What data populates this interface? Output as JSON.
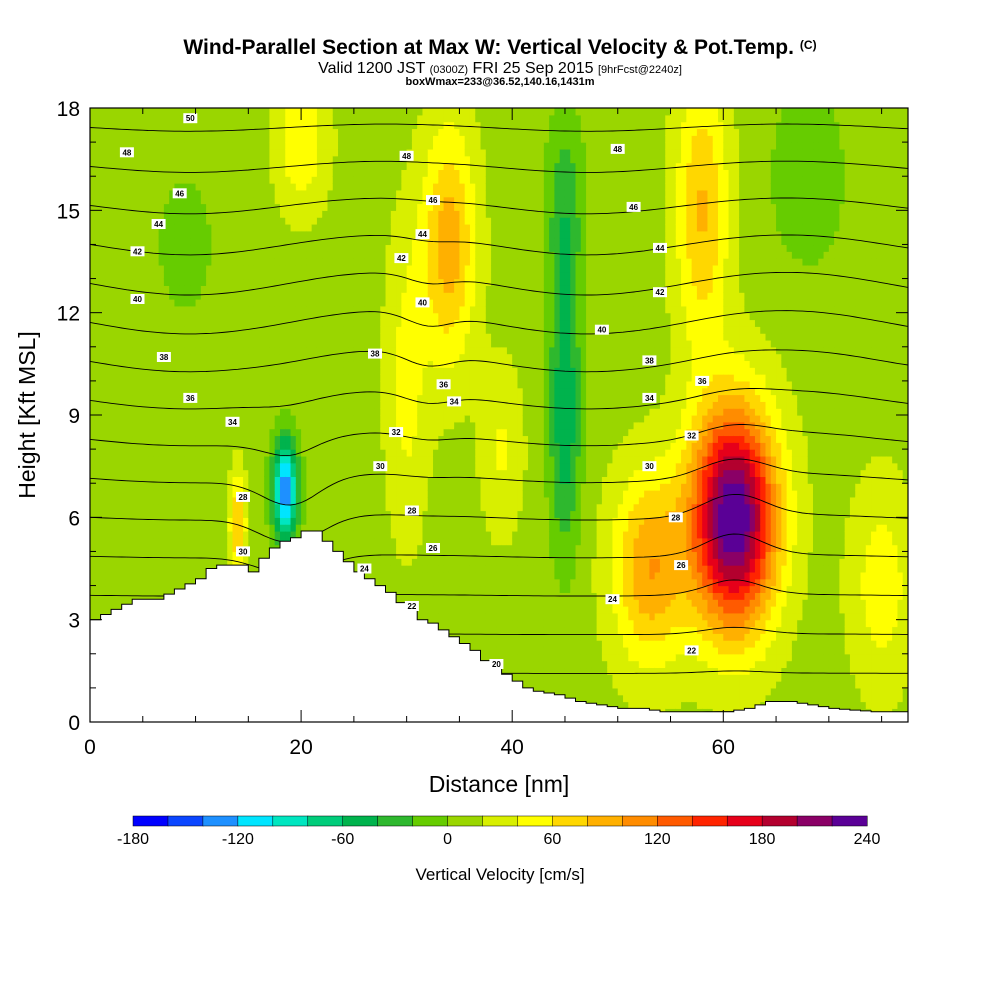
{
  "header": {
    "title": "Wind-Parallel Section at Max W: Vertical Velocity & Pot.Temp.",
    "title_mark": "(C)",
    "subtitle_a": "Valid 1200 JST",
    "subtitle_b": "(0300Z)",
    "subtitle_c": "FRI 25 Sep 2015",
    "subtitle_d": "[9hrFcst@2240z]",
    "subtitle2": "boxWmax=233@36.52,140.16,1431m"
  },
  "chart_data": {
    "type": "heatmap",
    "xlabel": "Distance [nm]",
    "ylabel": "Height [Kft MSL]",
    "xlim": [
      0,
      77.5
    ],
    "ylim": [
      0,
      18
    ],
    "x_ticks": [
      0,
      20,
      40,
      60
    ],
    "y_ticks": [
      0,
      3,
      6,
      9,
      12,
      15,
      18
    ],
    "colorbar": {
      "title": "Vertical Velocity [cm/s]",
      "min": -180,
      "max": 240,
      "step": 20,
      "tick_values": [
        -180,
        -120,
        -60,
        0,
        60,
        120,
        180,
        240
      ],
      "tick_labels": [
        "-180",
        "-120",
        "-60",
        "0",
        "60",
        "120",
        "180",
        "240"
      ],
      "colors": [
        "#0000ff",
        "#0a46ff",
        "#1e90ff",
        "#00e5ff",
        "#00e6c0",
        "#00cc7a",
        "#00b34d",
        "#2eb82e",
        "#66cc00",
        "#9ad600",
        "#d8ef00",
        "#ffff00",
        "#ffd700",
        "#ffb000",
        "#ff8c00",
        "#ff5a00",
        "#ff2400",
        "#e6001a",
        "#b3002e",
        "#8a0066",
        "#5a0096"
      ]
    },
    "terrain_profile": {
      "x": [
        0,
        2,
        4,
        6,
        8,
        10,
        11,
        12,
        13,
        14,
        15,
        15.5,
        16,
        17,
        18,
        19,
        20,
        21,
        22,
        23,
        24,
        25,
        26,
        27,
        28,
        29,
        30,
        31,
        32,
        33,
        34,
        35,
        36,
        37,
        38,
        39,
        40,
        41,
        42,
        44,
        46,
        48,
        50,
        52,
        54,
        56,
        58,
        60,
        62,
        64,
        66,
        68,
        70,
        72,
        74,
        76,
        77.5
      ],
      "height": [
        3.0,
        3.3,
        3.6,
        3.6,
        3.9,
        4.2,
        4.5,
        4.6,
        4.6,
        4.6,
        4.4,
        4.3,
        4.8,
        5.1,
        5.3,
        5.4,
        5.6,
        5.6,
        5.3,
        5.0,
        4.7,
        4.4,
        4.2,
        4.0,
        3.8,
        3.5,
        3.3,
        3.0,
        2.9,
        2.7,
        2.5,
        2.3,
        2.1,
        1.8,
        1.6,
        1.4,
        1.2,
        1.0,
        0.9,
        0.8,
        0.6,
        0.5,
        0.4,
        0.4,
        0.3,
        0.3,
        0.3,
        0.3,
        0.4,
        0.6,
        0.6,
        0.5,
        0.4,
        0.35,
        0.3,
        0.3,
        0.3
      ]
    },
    "vertical_velocity_features": [
      {
        "x": 61,
        "y": 6.0,
        "peak": 233,
        "sx": 4.0,
        "sy": 3.2
      },
      {
        "x": 53,
        "y": 4.5,
        "peak": 85,
        "sx": 3.5,
        "sy": 2.8
      },
      {
        "x": 58,
        "y": 15.0,
        "peak": 70,
        "sx": 2.5,
        "sy": 4.0
      },
      {
        "x": 34,
        "y": 14.0,
        "peak": 80,
        "sx": 2.5,
        "sy": 3.5
      },
      {
        "x": 30,
        "y": 10.0,
        "peak": 35,
        "sx": 2.0,
        "sy": 4.5
      },
      {
        "x": 14,
        "y": 5.8,
        "peak": 70,
        "sx": 0.8,
        "sy": 1.5
      },
      {
        "x": 18.5,
        "y": 6.8,
        "peak": -150,
        "sx": 1.2,
        "sy": 1.5
      },
      {
        "x": 45,
        "y": 9.0,
        "peak": -70,
        "sx": 1.5,
        "sy": 4.0
      },
      {
        "x": 45,
        "y": 15.0,
        "peak": -45,
        "sx": 1.8,
        "sy": 3.0
      },
      {
        "x": 20,
        "y": 17.0,
        "peak": 45,
        "sx": 2.5,
        "sy": 2.0
      },
      {
        "x": 9,
        "y": 14.0,
        "peak": -15,
        "sx": 5.0,
        "sy": 4.0
      },
      {
        "x": 68,
        "y": 16.0,
        "peak": -25,
        "sx": 4.0,
        "sy": 3.0
      },
      {
        "x": 39,
        "y": 8.0,
        "peak": 30,
        "sx": 2.0,
        "sy": 2.5
      },
      {
        "x": 75,
        "y": 4.0,
        "peak": 40,
        "sx": 3.0,
        "sy": 3.0
      }
    ],
    "theta_contours": [
      {
        "value": 20,
        "label": "20"
      },
      {
        "value": 22,
        "label": "22"
      },
      {
        "value": 24,
        "label": "24"
      },
      {
        "value": 26,
        "label": "26"
      },
      {
        "value": 28,
        "label": "28"
      },
      {
        "value": 30,
        "label": "30"
      },
      {
        "value": 32,
        "label": "32"
      },
      {
        "value": 34,
        "label": "34"
      },
      {
        "value": 36,
        "label": "36"
      },
      {
        "value": 38,
        "label": "38"
      },
      {
        "value": 40,
        "label": "40"
      },
      {
        "value": 42,
        "label": "42"
      },
      {
        "value": 44,
        "label": "44"
      },
      {
        "value": 46,
        "label": "46"
      },
      {
        "value": 48,
        "label": "48"
      },
      {
        "value": 50,
        "label": "50"
      }
    ],
    "contour_labels": [
      {
        "x": 9.5,
        "y": 17.7,
        "text": "50"
      },
      {
        "x": 3.5,
        "y": 16.7,
        "text": "48"
      },
      {
        "x": 30,
        "y": 16.6,
        "text": "48"
      },
      {
        "x": 50,
        "y": 16.8,
        "text": "48"
      },
      {
        "x": 8.5,
        "y": 15.5,
        "text": "46"
      },
      {
        "x": 32.5,
        "y": 15.3,
        "text": "46"
      },
      {
        "x": 51.5,
        "y": 15.1,
        "text": "46"
      },
      {
        "x": 6.5,
        "y": 14.6,
        "text": "44"
      },
      {
        "x": 31.5,
        "y": 14.3,
        "text": "44"
      },
      {
        "x": 54,
        "y": 13.9,
        "text": "44"
      },
      {
        "x": 4.5,
        "y": 13.8,
        "text": "42"
      },
      {
        "x": 29.5,
        "y": 13.6,
        "text": "42"
      },
      {
        "x": 54,
        "y": 12.6,
        "text": "42"
      },
      {
        "x": 4.5,
        "y": 12.4,
        "text": "40"
      },
      {
        "x": 31.5,
        "y": 12.3,
        "text": "40"
      },
      {
        "x": 48.5,
        "y": 11.5,
        "text": "40"
      },
      {
        "x": 7,
        "y": 10.7,
        "text": "38"
      },
      {
        "x": 27,
        "y": 10.8,
        "text": "38"
      },
      {
        "x": 53,
        "y": 10.6,
        "text": "38"
      },
      {
        "x": 9.5,
        "y": 9.5,
        "text": "36"
      },
      {
        "x": 33.5,
        "y": 9.9,
        "text": "36"
      },
      {
        "x": 58,
        "y": 10.0,
        "text": "36"
      },
      {
        "x": 13.5,
        "y": 8.8,
        "text": "34"
      },
      {
        "x": 34.5,
        "y": 9.4,
        "text": "34"
      },
      {
        "x": 53,
        "y": 9.5,
        "text": "34"
      },
      {
        "x": 29,
        "y": 8.5,
        "text": "32"
      },
      {
        "x": 57,
        "y": 8.4,
        "text": "32"
      },
      {
        "x": 27.5,
        "y": 7.5,
        "text": "30"
      },
      {
        "x": 53,
        "y": 7.5,
        "text": "30"
      },
      {
        "x": 14.5,
        "y": 6.6,
        "text": "28"
      },
      {
        "x": 30.5,
        "y": 6.2,
        "text": "28"
      },
      {
        "x": 55.5,
        "y": 6.0,
        "text": "28"
      },
      {
        "x": 14.5,
        "y": 5.0,
        "text": "30"
      },
      {
        "x": 32.5,
        "y": 5.1,
        "text": "26"
      },
      {
        "x": 56,
        "y": 4.6,
        "text": "26"
      },
      {
        "x": 26,
        "y": 4.5,
        "text": "24"
      },
      {
        "x": 49.5,
        "y": 3.6,
        "text": "24"
      },
      {
        "x": 30.5,
        "y": 3.4,
        "text": "22"
      },
      {
        "x": 57,
        "y": 2.1,
        "text": "22"
      },
      {
        "x": 38.5,
        "y": 1.7,
        "text": "20"
      }
    ]
  }
}
